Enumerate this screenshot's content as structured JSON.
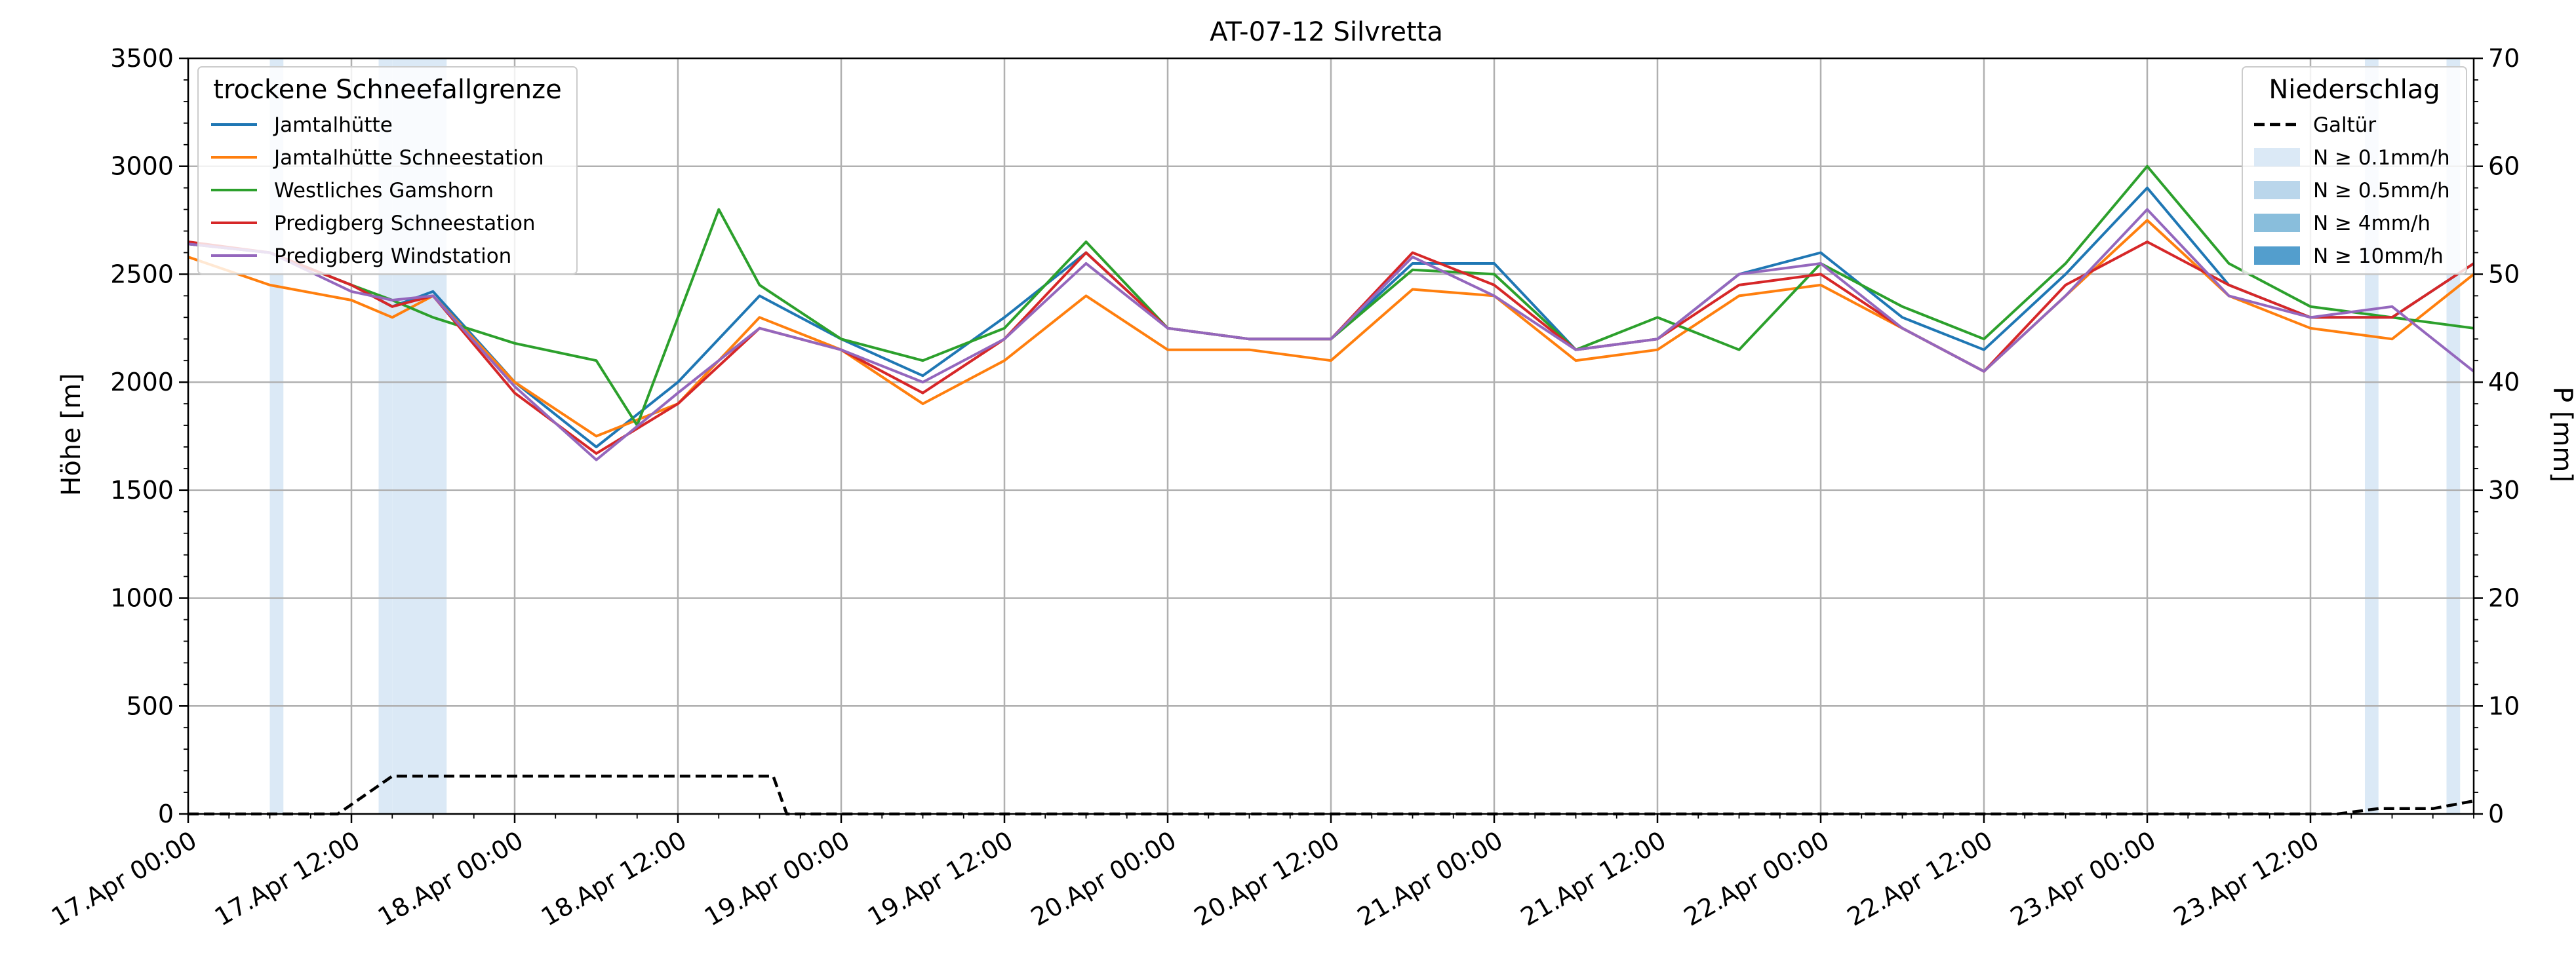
{
  "chart_data": {
    "type": "line",
    "title": "AT-07-12 Silvretta",
    "ylabel": "Höhe [m]",
    "y2label": "P [mm]",
    "ylim": [
      0,
      3500
    ],
    "y2lim": [
      0,
      70
    ],
    "yticks": [
      "0",
      "500",
      "1000",
      "1500",
      "2000",
      "2500",
      "3000",
      "3500"
    ],
    "y2ticks": [
      "0",
      "10",
      "20",
      "30",
      "40",
      "50",
      "60",
      "70"
    ],
    "xlim": [
      "2024-04-17T00:00",
      "2024-04-24T00:00"
    ],
    "xticks": [
      "17.Apr 00:00",
      "17.Apr 12:00",
      "18.Apr 00:00",
      "18.Apr 12:00",
      "19.Apr 00:00",
      "19.Apr 12:00",
      "20.Apr 00:00",
      "20.Apr 12:00",
      "21.Apr 00:00",
      "21.Apr 12:00",
      "22.Apr 00:00",
      "22.Apr 12:00",
      "23.Apr 00:00",
      "23.Apr 12:00"
    ],
    "grid": true,
    "legend_snowline": {
      "title": "trockene Schneefallgrenze",
      "placement": "top-left",
      "entries": [
        "Jamtalhütte",
        "Jamtalhütte Schneestation",
        "Westliches Gamshorn",
        "Predigberg Schneestation",
        "Predigberg Windstation"
      ]
    },
    "legend_precip": {
      "title": "Niederschlag",
      "placement": "top-right",
      "entries": [
        "Galtür",
        "N ≥ 0.1mm/h",
        "N ≥ 0.5mm/h",
        "N ≥ 4mm/h",
        "N ≥ 10mm/h"
      ]
    },
    "shade_colors": [
      "#dbe9f6",
      "#bad6eb",
      "#89bedc",
      "#539ecd"
    ],
    "series": [
      {
        "name": "Jamtalhütte",
        "color": "#1f77b4",
        "x": [
          "2024-04-17T00:00",
          "2024-04-17T06:00",
          "2024-04-17T12:00",
          "2024-04-17T15:00",
          "2024-04-17T18:00",
          "2024-04-18T00:00",
          "2024-04-18T06:00",
          "2024-04-18T12:00",
          "2024-04-18T18:00",
          "2024-04-19T00:00",
          "2024-04-19T06:00",
          "2024-04-19T12:00",
          "2024-04-19T18:00",
          "2024-04-20T00:00",
          "2024-04-20T06:00",
          "2024-04-20T12:00",
          "2024-04-20T18:00",
          "2024-04-21T00:00",
          "2024-04-21T06:00",
          "2024-04-21T12:00",
          "2024-04-21T18:00",
          "2024-04-22T00:00",
          "2024-04-22T06:00",
          "2024-04-22T12:00",
          "2024-04-22T18:00",
          "2024-04-23T00:00",
          "2024-04-23T06:00",
          "2024-04-23T12:00",
          "2024-04-23T18:00",
          "2024-04-24T00:00"
        ],
        "values": [
          2640,
          2600,
          2450,
          2350,
          2420,
          2000,
          1700,
          2000,
          2400,
          2200,
          2030,
          2300,
          2600,
          2250,
          2200,
          2200,
          2550,
          2550,
          2150,
          2200,
          2500,
          2600,
          2300,
          2150,
          2500,
          2900,
          2450,
          2300,
          2300,
          2550
        ]
      },
      {
        "name": "Jamtalhütte Schneestation",
        "color": "#ff7f0e",
        "x": [
          "2024-04-17T00:00",
          "2024-04-17T06:00",
          "2024-04-17T12:00",
          "2024-04-17T15:00",
          "2024-04-17T18:00",
          "2024-04-18T00:00",
          "2024-04-18T06:00",
          "2024-04-18T12:00",
          "2024-04-18T18:00",
          "2024-04-19T00:00",
          "2024-04-19T06:00",
          "2024-04-19T12:00",
          "2024-04-19T18:00",
          "2024-04-20T00:00",
          "2024-04-20T06:00",
          "2024-04-20T12:00",
          "2024-04-20T18:00",
          "2024-04-21T00:00",
          "2024-04-21T06:00",
          "2024-04-21T12:00",
          "2024-04-21T18:00",
          "2024-04-22T00:00",
          "2024-04-22T06:00",
          "2024-04-22T12:00",
          "2024-04-22T18:00",
          "2024-04-23T00:00",
          "2024-04-23T06:00",
          "2024-04-23T12:00",
          "2024-04-23T18:00",
          "2024-04-24T00:00"
        ],
        "values": [
          2580,
          2450,
          2380,
          2300,
          2400,
          2000,
          1750,
          1900,
          2300,
          2150,
          1900,
          2100,
          2400,
          2150,
          2150,
          2100,
          2430,
          2400,
          2100,
          2150,
          2400,
          2450,
          2250,
          2050,
          2400,
          2750,
          2400,
          2250,
          2200,
          2500
        ]
      },
      {
        "name": "Westliches Gamshorn",
        "color": "#2ca02c",
        "x": [
          "2024-04-17T00:00",
          "2024-04-17T06:00",
          "2024-04-17T12:00",
          "2024-04-17T15:00",
          "2024-04-17T18:00",
          "2024-04-18T00:00",
          "2024-04-18T06:00",
          "2024-04-18T09:00",
          "2024-04-18T12:00",
          "2024-04-18T15:00",
          "2024-04-18T18:00",
          "2024-04-19T00:00",
          "2024-04-19T06:00",
          "2024-04-19T12:00",
          "2024-04-19T18:00",
          "2024-04-20T00:00",
          "2024-04-20T06:00",
          "2024-04-20T12:00",
          "2024-04-20T18:00",
          "2024-04-21T00:00",
          "2024-04-21T06:00",
          "2024-04-21T12:00",
          "2024-04-21T18:00",
          "2024-04-22T00:00",
          "2024-04-22T06:00",
          "2024-04-22T12:00",
          "2024-04-22T18:00",
          "2024-04-23T00:00",
          "2024-04-23T06:00",
          "2024-04-23T12:00",
          "2024-04-23T18:00",
          "2024-04-24T00:00"
        ],
        "values": [
          2640,
          2600,
          2450,
          2380,
          2300,
          2180,
          2100,
          1800,
          2300,
          2800,
          2450,
          2200,
          2100,
          2250,
          2650,
          2250,
          2200,
          2200,
          2520,
          2500,
          2150,
          2300,
          2150,
          2550,
          2350,
          2200,
          2550,
          3000,
          2550,
          2350,
          2300,
          2250
        ]
      },
      {
        "name": "Predigberg Schneestation",
        "color": "#d62728",
        "x": [
          "2024-04-17T00:00",
          "2024-04-17T06:00",
          "2024-04-17T12:00",
          "2024-04-17T15:00",
          "2024-04-17T18:00",
          "2024-04-18T00:00",
          "2024-04-18T06:00",
          "2024-04-18T12:00",
          "2024-04-18T18:00",
          "2024-04-19T00:00",
          "2024-04-19T06:00",
          "2024-04-19T12:00",
          "2024-04-19T18:00",
          "2024-04-20T00:00",
          "2024-04-20T06:00",
          "2024-04-20T12:00",
          "2024-04-20T18:00",
          "2024-04-21T00:00",
          "2024-04-21T06:00",
          "2024-04-21T12:00",
          "2024-04-21T18:00",
          "2024-04-22T00:00",
          "2024-04-22T06:00",
          "2024-04-22T12:00",
          "2024-04-22T18:00",
          "2024-04-23T00:00",
          "2024-04-23T06:00",
          "2024-04-23T12:00",
          "2024-04-23T18:00",
          "2024-04-24T00:00"
        ],
        "values": [
          2650,
          2600,
          2450,
          2350,
          2400,
          1950,
          1670,
          1900,
          2250,
          2150,
          1950,
          2200,
          2600,
          2250,
          2200,
          2200,
          2600,
          2450,
          2150,
          2200,
          2450,
          2500,
          2250,
          2050,
          2450,
          2650,
          2450,
          2300,
          2300,
          2550
        ]
      },
      {
        "name": "Predigberg Windstation",
        "color": "#9467bd",
        "x": [
          "2024-04-17T00:00",
          "2024-04-17T06:00",
          "2024-04-17T12:00",
          "2024-04-17T15:00",
          "2024-04-17T18:00",
          "2024-04-18T00:00",
          "2024-04-18T06:00",
          "2024-04-18T12:00",
          "2024-04-18T18:00",
          "2024-04-19T00:00",
          "2024-04-19T06:00",
          "2024-04-19T12:00",
          "2024-04-19T18:00",
          "2024-04-20T00:00",
          "2024-04-20T06:00",
          "2024-04-20T12:00",
          "2024-04-20T18:00",
          "2024-04-21T00:00",
          "2024-04-21T06:00",
          "2024-04-21T12:00",
          "2024-04-21T18:00",
          "2024-04-22T00:00",
          "2024-04-22T06:00",
          "2024-04-22T12:00",
          "2024-04-22T18:00",
          "2024-04-23T00:00",
          "2024-04-23T06:00",
          "2024-04-23T12:00",
          "2024-04-23T18:00",
          "2024-04-24T00:00"
        ],
        "values": [
          2640,
          2600,
          2420,
          2380,
          2400,
          1980,
          1640,
          1950,
          2250,
          2150,
          2000,
          2200,
          2550,
          2250,
          2200,
          2200,
          2580,
          2400,
          2150,
          2200,
          2500,
          2550,
          2250,
          2050,
          2400,
          2800,
          2400,
          2300,
          2350,
          2050
        ]
      }
    ],
    "precip_line": {
      "name": "Galtür",
      "color": "#000000",
      "x": [
        "2024-04-17T00:00",
        "2024-04-17T11:00",
        "2024-04-17T15:00",
        "2024-04-17T16:00",
        "2024-04-18T19:00",
        "2024-04-18T20:00",
        "2024-04-23T14:00",
        "2024-04-23T17:00",
        "2024-04-23T21:00",
        "2024-04-24T00:00"
      ],
      "values": [
        0,
        0,
        3.5,
        3.5,
        3.5,
        0,
        0,
        0.5,
        0.5,
        1.2
      ]
    },
    "precip_bands": [
      {
        "start": "2024-04-17T06:00",
        "end": "2024-04-17T07:00",
        "level": 0
      },
      {
        "start": "2024-04-17T14:00",
        "end": "2024-04-17T15:00",
        "level": 0
      },
      {
        "start": "2024-04-17T15:00",
        "end": "2024-04-17T18:00",
        "level": 0
      },
      {
        "start": "2024-04-17T18:00",
        "end": "2024-04-17T19:00",
        "level": 0
      },
      {
        "start": "2024-04-23T16:00",
        "end": "2024-04-23T17:00",
        "level": 0
      },
      {
        "start": "2024-04-23T22:00",
        "end": "2024-04-23T23:00",
        "level": 0
      }
    ]
  }
}
